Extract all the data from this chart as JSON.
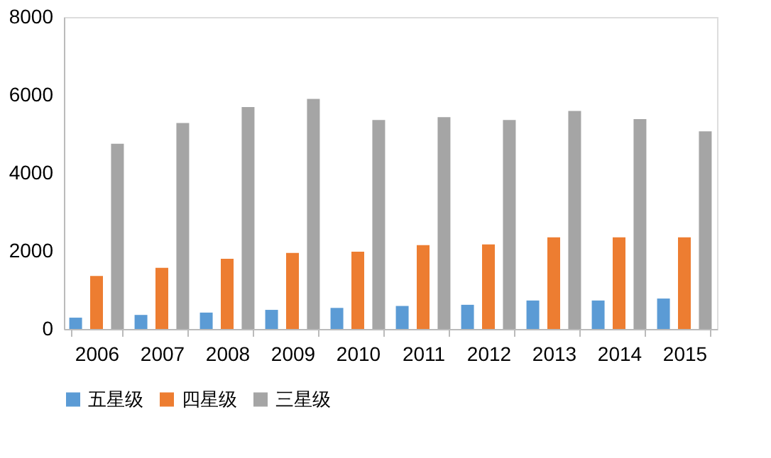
{
  "chart_data": {
    "type": "bar",
    "categories": [
      "2006",
      "2007",
      "2008",
      "2009",
      "2010",
      "2011",
      "2012",
      "2013",
      "2014",
      "2015"
    ],
    "series": [
      {
        "name": "五星级",
        "color": "#5b9bd5",
        "values": [
          290,
          360,
          420,
          490,
          540,
          590,
          620,
          730,
          730,
          780
        ]
      },
      {
        "name": "四星级",
        "color": "#ed7d31",
        "values": [
          1360,
          1570,
          1800,
          1950,
          1980,
          2150,
          2170,
          2350,
          2350,
          2350
        ]
      },
      {
        "name": "三星级",
        "color": "#a5a5a5",
        "values": [
          4750,
          5280,
          5690,
          5900,
          5360,
          5430,
          5360,
          5590,
          5380,
          5070
        ]
      }
    ],
    "ylim": [
      0,
      8000
    ],
    "yticks": [
      0,
      2000,
      4000,
      6000,
      8000
    ],
    "grid": false,
    "legend": "bottom"
  }
}
